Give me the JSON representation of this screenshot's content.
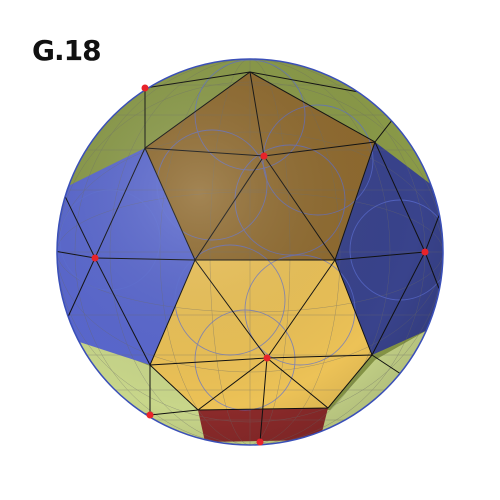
{
  "figure": {
    "label": "G.18"
  },
  "colors": {
    "olive_green": "#8a9a48",
    "light_green": "#c8d68a",
    "brown": "#8f6a2e",
    "gold": "#ecc257",
    "blue": "#5a68cf",
    "dark_blue": "#39438c",
    "dark_red": "#8b2a2a",
    "vertex_red": "#e8232a",
    "outline_blue": "#3a4fb8"
  }
}
